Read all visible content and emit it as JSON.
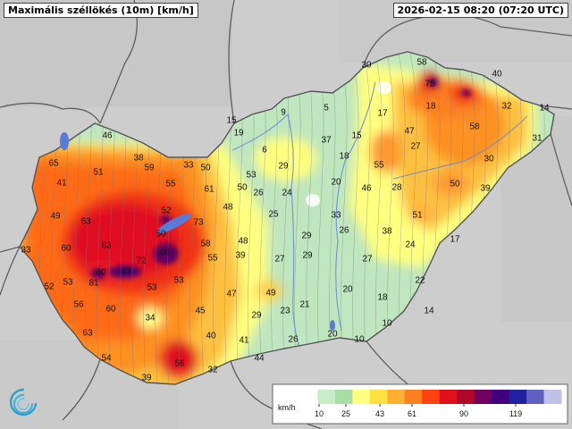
{
  "header": {
    "title": "Maximális széllökés (10m) [km/h]",
    "timestamp": "2026-02-15 08:20 (07:20 UTC)"
  },
  "legend": {
    "unit": "km/h",
    "ticks": [
      "10",
      "25",
      "43",
      "61",
      "90",
      "119"
    ],
    "colors": [
      "#ffffff",
      "#c8ecc8",
      "#a6dea6",
      "#ffff80",
      "#ffe040",
      "#ffb030",
      "#ff8020",
      "#ff4010",
      "#e01018",
      "#b00828",
      "#700060",
      "#400080",
      "#2020a0",
      "#6060c0",
      "#c0c0e8"
    ]
  },
  "palette": {
    "background": "#cfcfcf",
    "border": "#555555",
    "river": "#6a8ad0",
    "lake": "#5a7ad8"
  },
  "logo": {
    "name": "omsz-swirl-logo"
  },
  "stations": [
    {
      "v": "30",
      "lvl": 2
    },
    {
      "v": "58",
      "lvl": 4
    },
    {
      "v": "75",
      "lvl": 5
    },
    {
      "v": "40",
      "lvl": 3
    },
    {
      "v": "9",
      "lvl": 1
    },
    {
      "v": "5",
      "lvl": 1
    },
    {
      "v": "17",
      "lvl": 1
    },
    {
      "v": "18",
      "lvl": 1
    },
    {
      "v": "32",
      "lvl": 3
    },
    {
      "v": "14",
      "lvl": 1
    },
    {
      "v": "58",
      "lvl": 4
    },
    {
      "v": "15",
      "lvl": 1
    },
    {
      "v": "19",
      "lvl": 1
    },
    {
      "v": "37",
      "lvl": 2
    },
    {
      "v": "15",
      "lvl": 1
    },
    {
      "v": "47",
      "lvl": 3
    },
    {
      "v": "27",
      "lvl": 2
    },
    {
      "v": "31",
      "lvl": 3
    },
    {
      "v": "46",
      "lvl": 4
    },
    {
      "v": "38",
      "lvl": 3
    },
    {
      "v": "6",
      "lvl": 1
    },
    {
      "v": "18",
      "lvl": 1
    },
    {
      "v": "55",
      "lvl": 4
    },
    {
      "v": "30",
      "lvl": 3
    },
    {
      "v": "65",
      "lvl": 5
    },
    {
      "v": "51",
      "lvl": 4
    },
    {
      "v": "59",
      "lvl": 4
    },
    {
      "v": "33",
      "lvl": 3
    },
    {
      "v": "50",
      "lvl": 4
    },
    {
      "v": "53",
      "lvl": 3
    },
    {
      "v": "29",
      "lvl": 2
    },
    {
      "v": "20",
      "lvl": 1
    },
    {
      "v": "46",
      "lvl": 3
    },
    {
      "v": "28",
      "lvl": 2
    },
    {
      "v": "50",
      "lvl": 4
    },
    {
      "v": "39",
      "lvl": 3
    },
    {
      "v": "41",
      "lvl": 4
    },
    {
      "v": "55",
      "lvl": 4
    },
    {
      "v": "61",
      "lvl": 4
    },
    {
      "v": "50",
      "lvl": 3
    },
    {
      "v": "26",
      "lvl": 2
    },
    {
      "v": "24",
      "lvl": 2
    },
    {
      "v": "49",
      "lvl": 4
    },
    {
      "v": "52",
      "lvl": 4
    },
    {
      "v": "48",
      "lvl": 3
    },
    {
      "v": "25",
      "lvl": 2
    },
    {
      "v": "33",
      "lvl": 2
    },
    {
      "v": "51",
      "lvl": 3
    },
    {
      "v": "63",
      "lvl": 5
    },
    {
      "v": "73",
      "lvl": 5
    },
    {
      "v": "50",
      "lvl": 5
    },
    {
      "v": "29",
      "lvl": 2
    },
    {
      "v": "38",
      "lvl": 2
    },
    {
      "v": "24",
      "lvl": 2
    },
    {
      "v": "17",
      "lvl": 1
    },
    {
      "v": "33",
      "lvl": 3
    },
    {
      "v": "60",
      "lvl": 4
    },
    {
      "v": "63",
      "lvl": 5
    },
    {
      "v": "58",
      "lvl": 4
    },
    {
      "v": "48",
      "lvl": 3
    },
    {
      "v": "26",
      "lvl": 2
    },
    {
      "v": "72",
      "lvl": 5
    },
    {
      "v": "86",
      "lvl": 6
    },
    {
      "v": "55",
      "lvl": 4
    },
    {
      "v": "39",
      "lvl": 3
    },
    {
      "v": "27",
      "lvl": 2
    },
    {
      "v": "29",
      "lvl": 2
    },
    {
      "v": "27",
      "lvl": 2
    },
    {
      "v": "52",
      "lvl": 4
    },
    {
      "v": "53",
      "lvl": 4
    },
    {
      "v": "80",
      "lvl": 6
    },
    {
      "v": "83",
      "lvl": 6
    },
    {
      "v": "81",
      "lvl": 6
    },
    {
      "v": "53",
      "lvl": 4
    },
    {
      "v": "53",
      "lvl": 4
    },
    {
      "v": "47",
      "lvl": 3
    },
    {
      "v": "49",
      "lvl": 3
    },
    {
      "v": "20",
      "lvl": 1
    },
    {
      "v": "18",
      "lvl": 1
    },
    {
      "v": "22",
      "lvl": 2
    },
    {
      "v": "56",
      "lvl": 4
    },
    {
      "v": "60",
      "lvl": 5
    },
    {
      "v": "45",
      "lvl": 3
    },
    {
      "v": "29",
      "lvl": 2
    },
    {
      "v": "23",
      "lvl": 2
    },
    {
      "v": "21",
      "lvl": 1
    },
    {
      "v": "10",
      "lvl": 1
    },
    {
      "v": "14",
      "lvl": 1
    },
    {
      "v": "34",
      "lvl": 2
    },
    {
      "v": "63",
      "lvl": 4
    },
    {
      "v": "40",
      "lvl": 3
    },
    {
      "v": "41",
      "lvl": 3
    },
    {
      "v": "26",
      "lvl": 2
    },
    {
      "v": "20",
      "lvl": 1
    },
    {
      "v": "10",
      "lvl": 1
    },
    {
      "v": "54",
      "lvl": 4
    },
    {
      "v": "56",
      "lvl": 5
    },
    {
      "v": "44",
      "lvl": 3
    },
    {
      "v": "39",
      "lvl": 2
    },
    {
      "v": "32",
      "lvl": 3
    }
  ]
}
